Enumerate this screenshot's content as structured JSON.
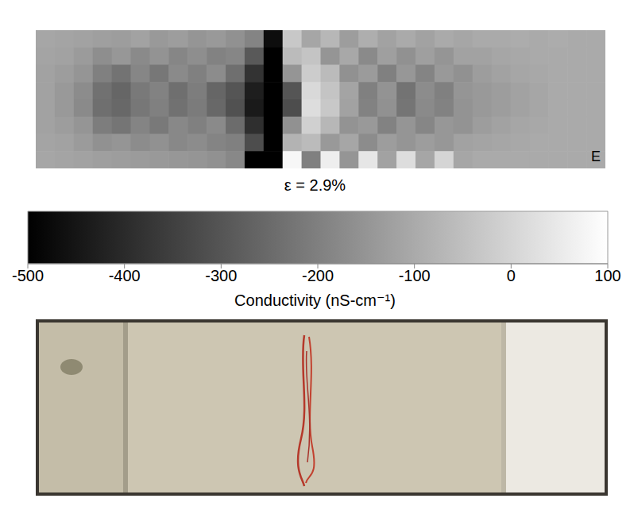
{
  "chart_data": {
    "type": "heatmap",
    "title": "ε = 2.9%",
    "annotations": [
      "E"
    ],
    "tick_labels": false,
    "colors": [
      "#000000",
      "#ffffff"
    ],
    "cells": [
      [
        -110,
        -115,
        -120,
        -125,
        -130,
        -120,
        -140,
        -130,
        -150,
        -140,
        -160,
        -190,
        -470,
        -30,
        -110,
        -70,
        -130,
        -90,
        -120,
        -100,
        -120,
        -100,
        -110,
        -100,
        -100,
        -95,
        -100,
        -95,
        -100,
        -100
      ],
      [
        -115,
        -120,
        -135,
        -165,
        -145,
        -175,
        -155,
        -185,
        -165,
        -195,
        -185,
        -290,
        -500,
        -60,
        -40,
        -150,
        -105,
        -175,
        -125,
        -160,
        -125,
        -150,
        -120,
        -120,
        -110,
        -105,
        -100,
        -100,
        -100,
        -100
      ],
      [
        -120,
        -130,
        -150,
        -200,
        -230,
        -185,
        -220,
        -175,
        -200,
        -170,
        -240,
        -380,
        -500,
        -150,
        -20,
        -60,
        -160,
        -135,
        -200,
        -145,
        -190,
        -140,
        -160,
        -130,
        -120,
        -110,
        -105,
        -100,
        -100,
        -100
      ],
      [
        -120,
        -140,
        -170,
        -235,
        -260,
        -215,
        -195,
        -240,
        -205,
        -260,
        -300,
        -430,
        -500,
        -300,
        10,
        -40,
        -115,
        -200,
        -155,
        -230,
        -170,
        -200,
        -150,
        -140,
        -130,
        -120,
        -110,
        -100,
        -100,
        -100
      ],
      [
        -120,
        -140,
        -175,
        -240,
        -255,
        -220,
        -200,
        -235,
        -210,
        -255,
        -310,
        -440,
        -500,
        -320,
        20,
        -30,
        -120,
        -195,
        -160,
        -225,
        -175,
        -195,
        -155,
        -140,
        -130,
        -120,
        -110,
        -100,
        -100,
        -100
      ],
      [
        -120,
        -130,
        -150,
        -205,
        -225,
        -190,
        -215,
        -180,
        -200,
        -175,
        -245,
        -390,
        -500,
        -160,
        -10,
        -70,
        -155,
        -140,
        -195,
        -150,
        -185,
        -145,
        -155,
        -130,
        -120,
        -110,
        -105,
        -100,
        -100,
        -100
      ],
      [
        -115,
        -120,
        -135,
        -160,
        -150,
        -170,
        -160,
        -180,
        -170,
        -190,
        -200,
        -320,
        -500,
        -80,
        -60,
        -140,
        -110,
        -170,
        -130,
        -150,
        -130,
        -145,
        -120,
        -115,
        -110,
        -105,
        -100,
        -100,
        -100,
        -100
      ],
      [
        -110,
        -115,
        -120,
        -125,
        -130,
        -135,
        -140,
        -145,
        -150,
        -160,
        -180,
        -500,
        -500,
        80,
        -200,
        60,
        -150,
        40,
        -120,
        20,
        -110,
        0,
        -110,
        -100,
        -100,
        -100,
        -100,
        -100,
        -100,
        -100
      ]
    ],
    "colorbar": {
      "range": [
        -500,
        100
      ],
      "ticks": [
        -500,
        -400,
        -300,
        -200,
        -100,
        0,
        100
      ],
      "label": "Conductivity (nS-cm⁻¹)"
    }
  }
}
